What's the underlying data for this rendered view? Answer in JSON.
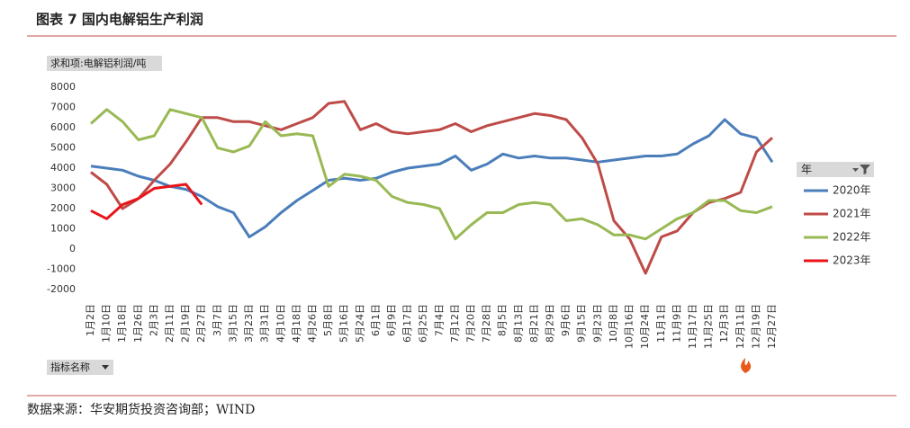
{
  "title": "图表 7 国内电解铝生产利润",
  "source": "数据来源：华安期货投资咨询部；WIND",
  "chart_data": {
    "type": "line",
    "value_field": "求和项:电解铝利润/吨",
    "filter_field": "指标名称",
    "legend_title": "年",
    "legend": "right",
    "categories": [
      "1月2日",
      "1月10日",
      "1月18日",
      "1月26日",
      "2月3日",
      "2月11日",
      "2月19日",
      "2月27日",
      "3月7日",
      "3月15日",
      "3月23日",
      "3月31日",
      "4月10日",
      "4月18日",
      "4月26日",
      "5月8日",
      "5月16日",
      "5月24日",
      "6月1日",
      "6月9日",
      "6月17日",
      "6月25日",
      "7月4日",
      "7月12日",
      "7月20日",
      "7月28日",
      "8月5日",
      "8月13日",
      "8月21日",
      "8月29日",
      "9月6日",
      "9月15日",
      "9月23日",
      "10月8日",
      "10月16日",
      "10月24日",
      "11月1日",
      "11月9日",
      "11月17日",
      "11月25日",
      "12月3日",
      "12月11日",
      "12月19日",
      "12月27日"
    ],
    "ylim": [
      -2000,
      8000
    ],
    "yticks": [
      8000,
      7000,
      6000,
      5000,
      4000,
      3000,
      2000,
      1000,
      0,
      -1000,
      -2000
    ],
    "series": [
      {
        "name": "2020年",
        "color": "#4a7ebb",
        "values": [
          4100,
          4000,
          3900,
          3600,
          3400,
          3100,
          2950,
          2600,
          2100,
          1800,
          600,
          1100,
          1800,
          2400,
          2900,
          3400,
          3500,
          3400,
          3500,
          3800,
          4000,
          4100,
          4200,
          4600,
          3900,
          4200,
          4700,
          4500,
          4600,
          4500,
          4500,
          4400,
          4300,
          4400,
          4500,
          4600,
          4600,
          4700,
          5200,
          5600,
          6400,
          5700,
          5500,
          4300
        ]
      },
      {
        "name": "2021年",
        "color": "#be4b48",
        "values": [
          3800,
          3200,
          2000,
          2500,
          3400,
          4200,
          5300,
          6500,
          6500,
          6300,
          6300,
          6100,
          5900,
          6200,
          6500,
          7200,
          7300,
          5900,
          6200,
          5800,
          5700,
          5800,
          5900,
          6200,
          5800,
          6100,
          6300,
          6500,
          6700,
          6600,
          6400,
          5500,
          4200,
          1400,
          500,
          -1200,
          600,
          900,
          1800,
          2300,
          2500,
          2800,
          4800,
          5500
        ]
      },
      {
        "name": "2022年",
        "color": "#98b954",
        "values": [
          6200,
          6900,
          6300,
          5400,
          5600,
          6900,
          6700,
          6500,
          5000,
          4800,
          5100,
          6300,
          5600,
          5700,
          5600,
          3100,
          3700,
          3600,
          3400,
          2600,
          2300,
          2200,
          2000,
          500,
          1200,
          1800,
          1800,
          2200,
          2300,
          2200,
          1400,
          1500,
          1200,
          700,
          700,
          500,
          1000,
          1500,
          1800,
          2400,
          2400,
          1900,
          1800,
          2100
        ]
      },
      {
        "name": "2023年",
        "color": "#e8141a",
        "values": [
          1900,
          1500,
          2200,
          2500,
          3000,
          3100,
          3200,
          2200,
          null,
          null,
          null,
          null,
          null,
          null,
          null,
          null,
          null,
          null,
          null,
          null,
          null,
          null,
          null,
          null,
          null,
          null,
          null,
          null,
          null,
          null,
          null,
          null,
          null,
          null,
          null,
          null,
          null,
          null,
          null,
          null,
          null,
          null,
          null,
          null
        ]
      }
    ]
  }
}
